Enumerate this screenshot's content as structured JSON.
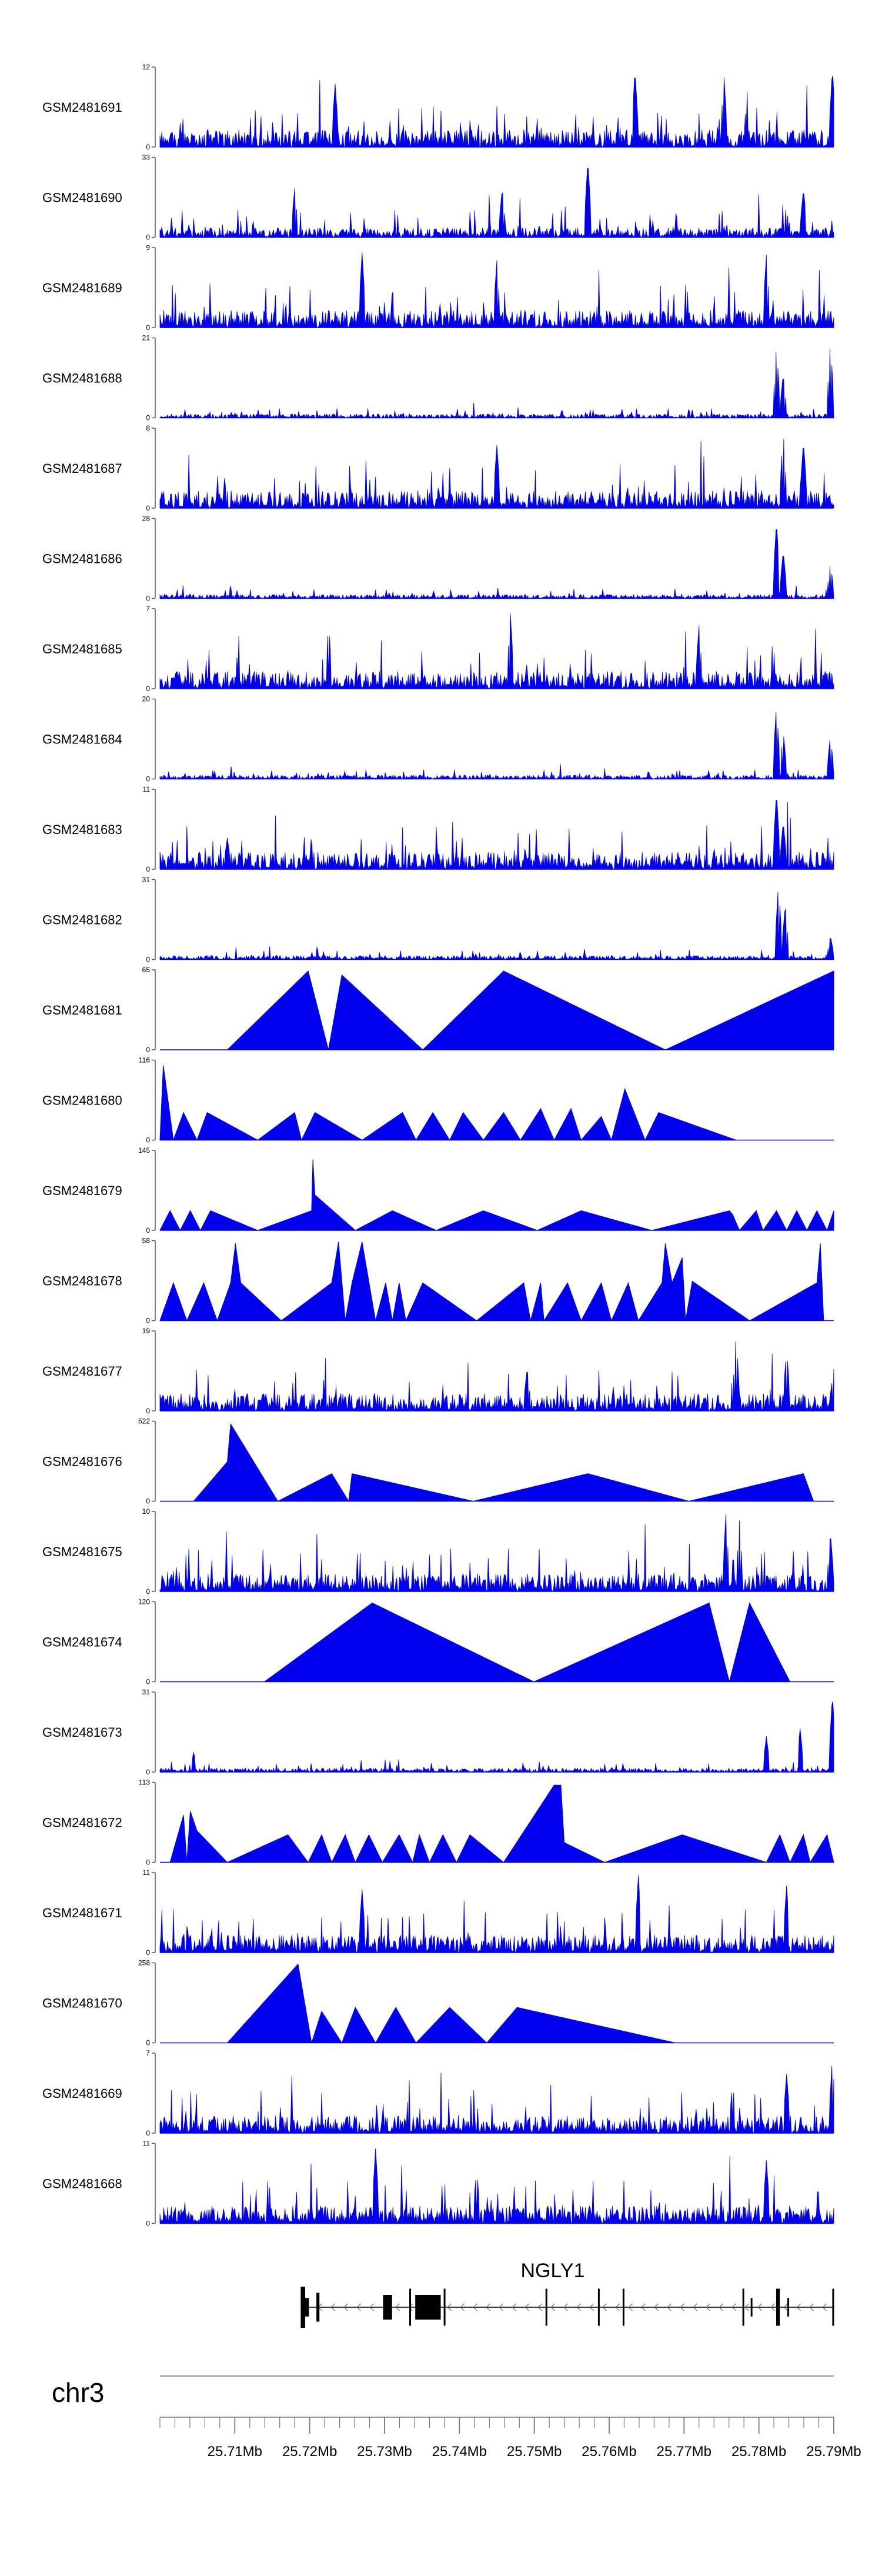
{
  "chart_data": {
    "type": "area",
    "title": "",
    "colors": {
      "signal": "#0000ee",
      "axis": "#555555",
      "gene": "#000000",
      "text": "#000000"
    },
    "tracks": [
      {
        "name": "GSM2481691",
        "ymax": 12,
        "ylabels": [
          "12",
          "0"
        ],
        "pattern": "dense",
        "peaks": [
          [
            0.705,
            0.98
          ],
          [
            0.837,
            0.9
          ],
          [
            0.998,
            0.99
          ],
          [
            0.26,
            0.8
          ]
        ]
      },
      {
        "name": "GSM2481690",
        "ymax": 33,
        "ylabels": [
          "33",
          "0"
        ],
        "pattern": "sparse",
        "peaks": [
          [
            0.2,
            0.62
          ],
          [
            0.508,
            0.62
          ],
          [
            0.635,
            0.98
          ],
          [
            0.955,
            0.62
          ]
        ]
      },
      {
        "name": "GSM2481689",
        "ymax": 9,
        "ylabels": [
          "9",
          "0"
        ],
        "pattern": "dense",
        "peaks": [
          [
            0.3,
            0.95
          ],
          [
            0.9,
            0.92
          ],
          [
            0.5,
            0.85
          ]
        ]
      },
      {
        "name": "GSM2481688",
        "ymax": 21,
        "ylabels": [
          "21",
          "0"
        ],
        "pattern": "lowdense",
        "peaks": [
          [
            0.915,
            0.93
          ],
          [
            0.925,
            0.55
          ],
          [
            0.995,
            0.98
          ]
        ]
      },
      {
        "name": "GSM2481687",
        "ymax": 8,
        "ylabels": [
          "8",
          "0"
        ],
        "pattern": "dense",
        "peaks": [
          [
            0.925,
            0.98
          ],
          [
            0.955,
            0.85
          ],
          [
            0.5,
            0.8
          ]
        ]
      },
      {
        "name": "GSM2481686",
        "ymax": 28,
        "ylabels": [
          "28",
          "0"
        ],
        "pattern": "lowdense",
        "peaks": [
          [
            0.915,
            0.98
          ],
          [
            0.925,
            0.6
          ],
          [
            0.995,
            0.45
          ]
        ]
      },
      {
        "name": "GSM2481685",
        "ymax": 7,
        "ylabels": [
          "7",
          "0"
        ],
        "pattern": "dense",
        "peaks": [
          [
            0.52,
            0.95
          ],
          [
            0.25,
            0.85
          ],
          [
            0.8,
            0.8
          ]
        ]
      },
      {
        "name": "GSM2481684",
        "ymax": 20,
        "ylabels": [
          "20",
          "0"
        ],
        "pattern": "lowdense",
        "peaks": [
          [
            0.915,
            0.95
          ],
          [
            0.925,
            0.6
          ],
          [
            0.995,
            0.55
          ]
        ]
      },
      {
        "name": "GSM2481683",
        "ymax": 11,
        "ylabels": [
          "11",
          "0"
        ],
        "pattern": "dense",
        "peaks": [
          [
            0.915,
            0.98
          ],
          [
            0.925,
            0.6
          ],
          [
            0.1,
            0.4
          ]
        ]
      },
      {
        "name": "GSM2481682",
        "ymax": 31,
        "ylabels": [
          "31",
          "0"
        ],
        "pattern": "lowdense",
        "peaks": [
          [
            0.918,
            0.98
          ],
          [
            0.928,
            0.7
          ],
          [
            0.995,
            0.3
          ]
        ]
      },
      {
        "name": "GSM2481681",
        "ymax": 65,
        "ylabels": [
          "65",
          "0"
        ],
        "pattern": "broad",
        "segments": [
          [
            0.1,
            0
          ],
          [
            0.22,
            1.0
          ],
          [
            0.25,
            0
          ],
          [
            0.27,
            0.95
          ],
          [
            0.39,
            0
          ],
          [
            0.51,
            1.0
          ],
          [
            0.75,
            0
          ],
          [
            1.0,
            1.0
          ]
        ]
      },
      {
        "name": "GSM2481680",
        "ymax": 116,
        "ylabels": [
          "116",
          "0"
        ],
        "pattern": "broad",
        "segments": [
          [
            0.0,
            0
          ],
          [
            0.005,
            0.95
          ],
          [
            0.02,
            0
          ],
          [
            0.035,
            0.35
          ],
          [
            0.055,
            0
          ],
          [
            0.07,
            0.35
          ],
          [
            0.145,
            0
          ],
          [
            0.2,
            0.35
          ],
          [
            0.21,
            0
          ],
          [
            0.23,
            0.35
          ],
          [
            0.3,
            0
          ],
          [
            0.36,
            0.35
          ],
          [
            0.38,
            0
          ],
          [
            0.405,
            0.35
          ],
          [
            0.43,
            0
          ],
          [
            0.45,
            0.35
          ],
          [
            0.48,
            0
          ],
          [
            0.51,
            0.35
          ],
          [
            0.535,
            0
          ],
          [
            0.565,
            0.4
          ],
          [
            0.585,
            0
          ],
          [
            0.61,
            0.4
          ],
          [
            0.625,
            0
          ],
          [
            0.655,
            0.3
          ],
          [
            0.67,
            0
          ],
          [
            0.69,
            0.65
          ],
          [
            0.72,
            0
          ],
          [
            0.74,
            0.35
          ],
          [
            0.855,
            0
          ]
        ]
      },
      {
        "name": "GSM2481679",
        "ymax": 145,
        "ylabels": [
          "145",
          "0"
        ],
        "pattern": "broad",
        "segments": [
          [
            0.0,
            0
          ],
          [
            0.015,
            0.25
          ],
          [
            0.03,
            0
          ],
          [
            0.045,
            0.25
          ],
          [
            0.06,
            0
          ],
          [
            0.075,
            0.25
          ],
          [
            0.145,
            0
          ],
          [
            0.225,
            0.25
          ],
          [
            0.227,
            0.9
          ],
          [
            0.23,
            0.45
          ],
          [
            0.29,
            0
          ],
          [
            0.345,
            0.25
          ],
          [
            0.41,
            0
          ],
          [
            0.48,
            0.25
          ],
          [
            0.56,
            0
          ],
          [
            0.625,
            0.25
          ],
          [
            0.73,
            0
          ],
          [
            0.845,
            0.25
          ],
          [
            0.85,
            0.2
          ],
          [
            0.86,
            0
          ],
          [
            0.885,
            0.25
          ],
          [
            0.895,
            0
          ],
          [
            0.915,
            0.25
          ],
          [
            0.93,
            0
          ],
          [
            0.945,
            0.25
          ],
          [
            0.96,
            0
          ],
          [
            0.975,
            0.25
          ],
          [
            0.99,
            0
          ],
          [
            1.0,
            0.25
          ]
        ]
      },
      {
        "name": "GSM2481678",
        "ymax": 58,
        "ylabels": [
          "58",
          "0"
        ],
        "pattern": "broad",
        "segments": [
          [
            0.0,
            0
          ],
          [
            0.02,
            0.48
          ],
          [
            0.04,
            0
          ],
          [
            0.065,
            0.48
          ],
          [
            0.085,
            0
          ],
          [
            0.105,
            0.48
          ],
          [
            0.112,
            0.98
          ],
          [
            0.12,
            0.48
          ],
          [
            0.18,
            0
          ],
          [
            0.255,
            0.48
          ],
          [
            0.265,
            1.0
          ],
          [
            0.275,
            0
          ],
          [
            0.285,
            0.48
          ],
          [
            0.3,
            1.0
          ],
          [
            0.32,
            0
          ],
          [
            0.335,
            0.48
          ],
          [
            0.345,
            0
          ],
          [
            0.355,
            0.48
          ],
          [
            0.365,
            0
          ],
          [
            0.39,
            0.48
          ],
          [
            0.47,
            0
          ],
          [
            0.54,
            0.48
          ],
          [
            0.55,
            0
          ],
          [
            0.565,
            0.48
          ],
          [
            0.57,
            0
          ],
          [
            0.605,
            0.48
          ],
          [
            0.625,
            0
          ],
          [
            0.655,
            0.48
          ],
          [
            0.67,
            0
          ],
          [
            0.695,
            0.48
          ],
          [
            0.71,
            0
          ],
          [
            0.745,
            0.48
          ],
          [
            0.75,
            0.98
          ],
          [
            0.76,
            0.48
          ],
          [
            0.775,
            0.8
          ],
          [
            0.78,
            0
          ],
          [
            0.79,
            0.5
          ],
          [
            0.875,
            0
          ],
          [
            0.975,
            0.48
          ],
          [
            0.98,
            0.98
          ],
          [
            0.985,
            0
          ]
        ]
      },
      {
        "name": "GSM2481677",
        "ymax": 19,
        "ylabels": [
          "19",
          "0"
        ],
        "pattern": "dense",
        "peaks": [
          [
            0.855,
            0.98
          ],
          [
            0.93,
            0.8
          ],
          [
            0.545,
            0.55
          ],
          [
            0.998,
            0.4
          ]
        ]
      },
      {
        "name": "GSM2481676",
        "ymax": 522,
        "ylabels": [
          "522",
          "0"
        ],
        "pattern": "broad",
        "segments": [
          [
            0.05,
            0
          ],
          [
            0.1,
            0.5
          ],
          [
            0.105,
            0.98
          ],
          [
            0.175,
            0
          ],
          [
            0.255,
            0.35
          ],
          [
            0.28,
            0
          ],
          [
            0.285,
            0.35
          ],
          [
            0.465,
            0
          ],
          [
            0.635,
            0.35
          ],
          [
            0.785,
            0
          ],
          [
            0.955,
            0.35
          ],
          [
            0.97,
            0
          ]
        ]
      },
      {
        "name": "GSM2481675",
        "ymax": 10,
        "ylabels": [
          "10",
          "0"
        ],
        "pattern": "dense",
        "peaks": [
          [
            0.84,
            0.98
          ],
          [
            0.86,
            0.9
          ],
          [
            0.995,
            0.75
          ]
        ]
      },
      {
        "name": "GSM2481674",
        "ymax": 120,
        "ylabels": [
          "120",
          "0"
        ],
        "pattern": "broad",
        "segments": [
          [
            0.155,
            0
          ],
          [
            0.315,
            1.0
          ],
          [
            0.555,
            0
          ],
          [
            0.815,
            1.0
          ],
          [
            0.845,
            0
          ],
          [
            0.875,
            1.0
          ],
          [
            0.935,
            0
          ]
        ]
      },
      {
        "name": "GSM2481673",
        "ymax": 31,
        "ylabels": [
          "31",
          "0"
        ],
        "pattern": "lowdense",
        "peaks": [
          [
            0.998,
            0.98
          ],
          [
            0.95,
            0.55
          ],
          [
            0.9,
            0.45
          ],
          [
            0.05,
            0.25
          ]
        ]
      },
      {
        "name": "GSM2481672",
        "ymax": 113,
        "ylabels": [
          "113",
          "0"
        ],
        "pattern": "broad",
        "segments": [
          [
            0.015,
            0
          ],
          [
            0.035,
            0.6
          ],
          [
            0.04,
            0
          ],
          [
            0.045,
            0.65
          ],
          [
            0.055,
            0.4
          ],
          [
            0.1,
            0
          ],
          [
            0.19,
            0.35
          ],
          [
            0.22,
            0
          ],
          [
            0.24,
            0.35
          ],
          [
            0.255,
            0
          ],
          [
            0.275,
            0.35
          ],
          [
            0.29,
            0
          ],
          [
            0.31,
            0.35
          ],
          [
            0.33,
            0
          ],
          [
            0.355,
            0.35
          ],
          [
            0.375,
            0
          ],
          [
            0.385,
            0.35
          ],
          [
            0.4,
            0
          ],
          [
            0.42,
            0.35
          ],
          [
            0.44,
            0
          ],
          [
            0.46,
            0.35
          ],
          [
            0.51,
            0
          ],
          [
            0.585,
            0.98
          ],
          [
            0.595,
            0.98
          ],
          [
            0.6,
            0.25
          ],
          [
            0.66,
            0
          ],
          [
            0.775,
            0.35
          ],
          [
            0.9,
            0
          ],
          [
            0.92,
            0.35
          ],
          [
            0.935,
            0
          ],
          [
            0.955,
            0.35
          ],
          [
            0.965,
            0
          ],
          [
            0.99,
            0.35
          ],
          [
            1.0,
            0
          ]
        ]
      },
      {
        "name": "GSM2481671",
        "ymax": 11,
        "ylabels": [
          "11",
          "0"
        ],
        "pattern": "dense",
        "peaks": [
          [
            0.71,
            0.98
          ],
          [
            0.93,
            0.85
          ],
          [
            0.3,
            0.8
          ]
        ]
      },
      {
        "name": "GSM2481670",
        "ymax": 258,
        "ylabels": [
          "258",
          "0"
        ],
        "pattern": "broad",
        "segments": [
          [
            0.1,
            0
          ],
          [
            0.205,
            1.0
          ],
          [
            0.225,
            0
          ],
          [
            0.24,
            0.4
          ],
          [
            0.27,
            0
          ],
          [
            0.29,
            0.45
          ],
          [
            0.32,
            0
          ],
          [
            0.35,
            0.45
          ],
          [
            0.38,
            0
          ],
          [
            0.43,
            0.45
          ],
          [
            0.485,
            0
          ],
          [
            0.53,
            0.45
          ],
          [
            0.765,
            0
          ]
        ]
      },
      {
        "name": "GSM2481669",
        "ymax": 7,
        "ylabels": [
          "7",
          "0"
        ],
        "pattern": "dense",
        "peaks": [
          [
            0.998,
            0.98
          ],
          [
            0.93,
            0.75
          ],
          [
            0.85,
            0.65
          ]
        ]
      },
      {
        "name": "GSM2481668",
        "ymax": 11,
        "ylabels": [
          "11",
          "0"
        ],
        "pattern": "dense",
        "peaks": [
          [
            0.32,
            0.95
          ],
          [
            0.47,
            0.7
          ],
          [
            0.9,
            0.8
          ]
        ]
      }
    ],
    "gene": {
      "name": "NGLY1",
      "exons": [
        [
          25.7188,
          25.7194,
          1.0
        ],
        [
          25.7194,
          25.7199,
          0.45
        ],
        [
          25.7209,
          25.7213,
          0.7
        ],
        [
          25.7298,
          25.731,
          0.6
        ],
        [
          25.7333,
          25.7335,
          0.9
        ],
        [
          25.7341,
          25.7375,
          0.6
        ],
        [
          25.7379,
          25.7381,
          0.9
        ],
        [
          25.7515,
          25.7517,
          0.9
        ],
        [
          25.7585,
          25.7587,
          0.9
        ],
        [
          25.7618,
          25.762,
          0.9
        ],
        [
          25.7778,
          25.778,
          0.9
        ],
        [
          25.7789,
          25.7791,
          0.45
        ],
        [
          25.7823,
          25.7828,
          0.9
        ],
        [
          25.7838,
          25.784,
          0.45
        ],
        [
          25.7898,
          25.79,
          0.9
        ]
      ],
      "start": 25.7188,
      "end": 25.79
    },
    "chromosome": "chr3",
    "x_axis": {
      "min": 25.7,
      "max": 25.79,
      "major_ticks": [
        25.71,
        25.72,
        25.73,
        25.74,
        25.75,
        25.76,
        25.77,
        25.78,
        25.79
      ],
      "tick_labels": [
        "25.71Mb",
        "25.72Mb",
        "25.73Mb",
        "25.74Mb",
        "25.75Mb",
        "25.76Mb",
        "25.77Mb",
        "25.78Mb",
        "25.79Mb"
      ],
      "minor_step": 0.002
    }
  }
}
